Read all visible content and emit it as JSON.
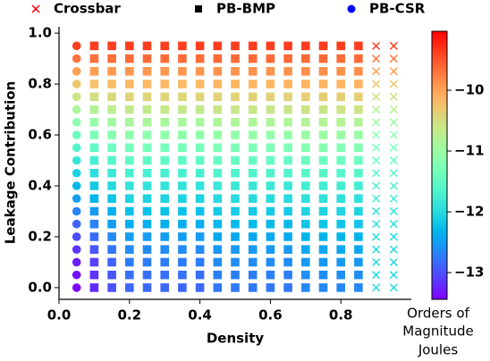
{
  "chart_data": {
    "type": "scatter",
    "xlabel": "Density",
    "ylabel": "Leakage Contribution",
    "colorbar_label": [
      "Orders of",
      "Magnitude",
      "Joules"
    ],
    "colormap": "rainbow",
    "xlim": [
      0,
      1.0
    ],
    "ylim": [
      -0.046,
      1.025
    ],
    "xticks": [
      {
        "value": 0,
        "label": "0.0"
      },
      0.2,
      0.4,
      0.6,
      0.8
    ],
    "yticks": [
      {
        "value": 0,
        "label": "0.0"
      },
      0.2,
      0.4,
      0.6,
      0.8,
      {
        "value": 1,
        "label": "1.0"
      }
    ],
    "clim": [
      -13.44,
      -9.03
    ],
    "cticks": [
      {
        "value": -13,
        "label": "−13"
      },
      {
        "value": -12,
        "label": "−12"
      },
      {
        "value": -11,
        "label": "−11"
      },
      {
        "value": -10,
        "label": "−10"
      }
    ],
    "y": [
      0,
      0.05,
      0.1,
      0.15,
      0.2,
      0.25,
      0.3,
      0.35,
      0.4,
      0.45,
      0.5,
      0.55,
      0.6,
      0.65,
      0.7,
      0.75,
      0.8,
      0.85,
      0.9,
      0.95
    ],
    "series": [
      {
        "name": "Crossbar",
        "marker": "x",
        "legend_color": "#ff0000",
        "columns": [
          {
            "x": 0.9,
            "values": [
              -12.0,
              -12.0,
              -11.99,
              -11.97,
              -11.95,
              -11.91,
              -11.85,
              -11.78,
              -11.7,
              -11.59,
              -11.47,
              -11.33,
              -11.17,
              -10.98,
              -10.77,
              -10.54,
              -10.29,
              -10.01,
              -9.7,
              -9.37
            ]
          },
          {
            "x": 0.95,
            "values": [
              -12.0,
              -12.0,
              -11.99,
              -11.97,
              -11.95,
              -11.91,
              -11.85,
              -11.78,
              -11.7,
              -11.59,
              -11.47,
              -11.33,
              -11.17,
              -10.98,
              -10.77,
              -10.54,
              -10.29,
              -10.01,
              -9.7,
              -9.37
            ]
          }
        ]
      },
      {
        "name": "PB-BMP",
        "marker": "square",
        "legend_color": "#000000",
        "columns": [
          {
            "x": 0.1,
            "values": [
              -13.2,
              -13.15,
              -13.07,
              -12.96,
              -12.83,
              -12.68,
              -12.52,
              -12.34,
              -12.15,
              -11.95,
              -11.74,
              -11.51,
              -11.28,
              -11.03,
              -10.78,
              -10.51,
              -10.24,
              -9.96,
              -9.67,
              -9.37
            ]
          },
          {
            "x": 0.15,
            "values": [
              -13.0,
              -12.96,
              -12.88,
              -12.77,
              -12.65,
              -12.51,
              -12.36,
              -12.19,
              -12.01,
              -11.82,
              -11.61,
              -11.4,
              -11.18,
              -10.95,
              -10.7,
              -10.45,
              -10.2,
              -9.93,
              -9.65,
              -9.37
            ]
          },
          {
            "x": 0.2,
            "values": [
              -12.85,
              -12.81,
              -12.73,
              -12.63,
              -12.51,
              -12.38,
              -12.23,
              -12.07,
              -11.9,
              -11.72,
              -11.52,
              -11.32,
              -11.1,
              -10.88,
              -10.65,
              -10.41,
              -10.16,
              -9.91,
              -9.64,
              -9.37
            ]
          },
          {
            "x": 0.25,
            "values": [
              -12.85,
              -12.81,
              -12.73,
              -12.63,
              -12.51,
              -12.38,
              -12.23,
              -12.07,
              -11.9,
              -11.72,
              -11.52,
              -11.32,
              -11.1,
              -10.88,
              -10.65,
              -10.41,
              -10.16,
              -9.91,
              -9.64,
              -9.37
            ]
          },
          {
            "x": 0.3,
            "values": [
              -12.85,
              -12.81,
              -12.73,
              -12.63,
              -12.51,
              -12.38,
              -12.23,
              -12.07,
              -11.9,
              -11.72,
              -11.52,
              -11.32,
              -11.1,
              -10.88,
              -10.65,
              -10.41,
              -10.16,
              -9.91,
              -9.64,
              -9.37
            ]
          },
          {
            "x": 0.35,
            "values": [
              -12.85,
              -12.81,
              -12.73,
              -12.63,
              -12.51,
              -12.38,
              -12.23,
              -12.07,
              -11.9,
              -11.72,
              -11.52,
              -11.32,
              -11.1,
              -10.88,
              -10.65,
              -10.41,
              -10.16,
              -9.91,
              -9.64,
              -9.37
            ]
          },
          {
            "x": 0.4,
            "values": [
              -12.85,
              -12.81,
              -12.73,
              -12.63,
              -12.51,
              -12.38,
              -12.23,
              -12.07,
              -11.9,
              -11.72,
              -11.52,
              -11.32,
              -11.1,
              -10.88,
              -10.65,
              -10.41,
              -10.16,
              -9.91,
              -9.64,
              -9.37
            ]
          },
          {
            "x": 0.45,
            "values": [
              -12.75,
              -12.71,
              -12.63,
              -12.54,
              -12.42,
              -12.29,
              -12.15,
              -11.99,
              -11.83,
              -11.65,
              -11.46,
              -11.26,
              -11.05,
              -10.84,
              -10.61,
              -10.38,
              -10.14,
              -9.89,
              -9.63,
              -9.37
            ]
          },
          {
            "x": 0.5,
            "values": [
              -12.75,
              -12.71,
              -12.63,
              -12.54,
              -12.42,
              -12.29,
              -12.15,
              -11.99,
              -11.83,
              -11.65,
              -11.46,
              -11.26,
              -11.05,
              -10.84,
              -10.61,
              -10.38,
              -10.14,
              -9.89,
              -9.63,
              -9.37
            ]
          },
          {
            "x": 0.55,
            "values": [
              -12.75,
              -12.71,
              -12.63,
              -12.54,
              -12.42,
              -12.29,
              -12.15,
              -11.99,
              -11.83,
              -11.65,
              -11.46,
              -11.26,
              -11.05,
              -10.84,
              -10.61,
              -10.38,
              -10.14,
              -9.89,
              -9.63,
              -9.37
            ]
          },
          {
            "x": 0.6,
            "values": [
              -12.75,
              -12.71,
              -12.63,
              -12.54,
              -12.42,
              -12.29,
              -12.15,
              -11.99,
              -11.83,
              -11.65,
              -11.46,
              -11.26,
              -11.05,
              -10.84,
              -10.61,
              -10.38,
              -10.14,
              -9.89,
              -9.63,
              -9.37
            ]
          },
          {
            "x": 0.65,
            "values": [
              -12.75,
              -12.71,
              -12.63,
              -12.54,
              -12.42,
              -12.29,
              -12.15,
              -11.99,
              -11.83,
              -11.65,
              -11.46,
              -11.26,
              -11.05,
              -10.84,
              -10.61,
              -10.38,
              -10.14,
              -9.89,
              -9.63,
              -9.37
            ]
          },
          {
            "x": 0.7,
            "values": [
              -12.65,
              -12.61,
              -12.54,
              -12.44,
              -12.33,
              -12.21,
              -12.07,
              -11.92,
              -11.75,
              -11.58,
              -11.4,
              -11.2,
              -11.0,
              -10.79,
              -10.58,
              -10.35,
              -10.12,
              -9.87,
              -9.63,
              -9.37
            ]
          },
          {
            "x": 0.75,
            "values": [
              -12.65,
              -12.61,
              -12.54,
              -12.44,
              -12.33,
              -12.21,
              -12.07,
              -11.92,
              -11.75,
              -11.58,
              -11.4,
              -11.2,
              -11.0,
              -10.79,
              -10.58,
              -10.35,
              -10.12,
              -9.87,
              -9.63,
              -9.37
            ]
          },
          {
            "x": 0.8,
            "values": [
              -12.65,
              -12.61,
              -12.54,
              -12.44,
              -12.33,
              -12.21,
              -12.07,
              -11.92,
              -11.75,
              -11.58,
              -11.4,
              -11.2,
              -11.0,
              -10.79,
              -10.58,
              -10.35,
              -10.12,
              -9.87,
              -9.63,
              -9.37
            ]
          },
          {
            "x": 0.85,
            "values": [
              -12.65,
              -12.61,
              -12.54,
              -12.44,
              -12.33,
              -12.21,
              -12.07,
              -11.92,
              -11.75,
              -11.58,
              -11.4,
              -11.2,
              -11.0,
              -10.79,
              -10.58,
              -10.35,
              -10.12,
              -9.87,
              -9.63,
              -9.37
            ]
          }
        ]
      },
      {
        "name": "PB-CSR",
        "marker": "circle",
        "legend_color": "#0000ff",
        "columns": [
          {
            "x": 0.05,
            "values": [
              -13.4,
              -13.35,
              -13.26,
              -13.15,
              -13.01,
              -12.86,
              -12.68,
              -12.5,
              -12.3,
              -12.09,
              -11.86,
              -11.62,
              -11.38,
              -11.12,
              -10.85,
              -10.57,
              -10.29,
              -9.99,
              -9.68,
              -9.37
            ]
          }
        ]
      }
    ]
  }
}
